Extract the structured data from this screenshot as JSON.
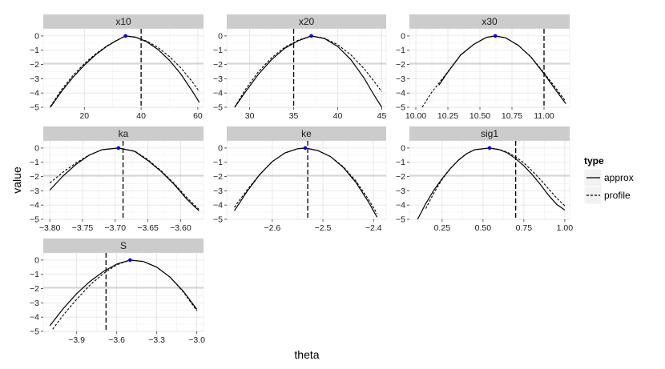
{
  "chart_data": {
    "type": "line",
    "xlabel": "theta",
    "ylabel": "value",
    "legend": {
      "title": "type",
      "position": "right",
      "entries": [
        {
          "name": "approx",
          "linetype": "solid"
        },
        {
          "name": "profile",
          "linetype": "dashed"
        }
      ]
    },
    "grid": true,
    "y_reference_line": -1.92,
    "colors": {
      "strip_bg": "#cccccc",
      "panel_bg": "#ffffff",
      "grid_major": "#e3e3e3",
      "grid_minor": "#f2f2f2",
      "reference_line": "#bdbdbd",
      "peak_point": "#0000ff",
      "line": "#000000"
    },
    "panels": [
      {
        "label": "x10",
        "xlim": [
          5.5,
          62
        ],
        "ylim": [
          -5,
          0.5
        ],
        "xticks": [
          20,
          40,
          60
        ],
        "yticks": [
          0,
          -1,
          -2,
          -3,
          -4,
          -5
        ],
        "xtick_labels": [
          "20",
          "40",
          "60"
        ],
        "ytick_labels": [
          "0",
          "−1",
          "−2",
          "−3",
          "−4",
          "−5"
        ],
        "estimate": 34.5,
        "vline": 40,
        "approx": {
          "x": [
            8.0,
            12.0,
            16.0,
            20.0,
            24.0,
            28.0,
            31.0,
            34.5,
            38.0,
            42.0,
            46.0,
            50.0,
            54.0,
            58.0,
            60.5
          ],
          "y": [
            -5.0,
            -3.88,
            -2.89,
            -2.04,
            -1.31,
            -0.72,
            -0.36,
            0.0,
            -0.09,
            -0.41,
            -0.96,
            -1.71,
            -2.67,
            -3.85,
            -4.65
          ]
        },
        "profile": {
          "x": [
            8.0,
            12.0,
            16.0,
            20.0,
            24.0,
            28.0,
            31.0,
            34.5,
            38.0,
            42.0,
            46.0,
            50.0,
            54.0,
            58.0,
            60.5
          ],
          "y": [
            -4.95,
            -3.75,
            -2.76,
            -1.94,
            -1.25,
            -0.69,
            -0.35,
            0.0,
            -0.08,
            -0.36,
            -0.82,
            -1.45,
            -2.24,
            -3.2,
            -3.9
          ]
        }
      },
      {
        "label": "x20",
        "xlim": [
          27.4,
          45.5
        ],
        "ylim": [
          -5,
          0.5
        ],
        "xticks": [
          30,
          35,
          40,
          45
        ],
        "yticks": [
          0,
          -1,
          -2,
          -3,
          -4,
          -5
        ],
        "xtick_labels": [
          "30",
          "35",
          "40",
          "45"
        ],
        "ytick_labels": [
          "0",
          "−1",
          "−2",
          "−3",
          "−4",
          "−5"
        ],
        "estimate": 37.0,
        "vline": 35.0,
        "approx": {
          "x": [
            28.3,
            29.5,
            31.0,
            32.5,
            34.0,
            35.5,
            37.0,
            38.5,
            40.0,
            41.5,
            43.0,
            44.0,
            45.0
          ],
          "y": [
            -5.0,
            -3.94,
            -2.68,
            -1.65,
            -0.86,
            -0.34,
            0.0,
            -0.18,
            -0.74,
            -1.67,
            -2.96,
            -4.02,
            -5.0
          ]
        },
        "profile": {
          "x": [
            28.3,
            29.5,
            31.0,
            32.5,
            34.0,
            35.5,
            37.0,
            38.5,
            40.0,
            41.5,
            43.0,
            44.0,
            45.0
          ],
          "y": [
            -5.0,
            -3.77,
            -2.5,
            -1.52,
            -0.78,
            -0.3,
            0.0,
            -0.16,
            -0.61,
            -1.33,
            -2.3,
            -3.08,
            -3.9
          ]
        }
      },
      {
        "label": "x30",
        "xlim": [
          9.95,
          11.2
        ],
        "ylim": [
          -5,
          0.5
        ],
        "xticks": [
          10.0,
          10.25,
          10.5,
          10.75,
          11.0
        ],
        "yticks": [
          0,
          -1,
          -2,
          -3,
          -4,
          -5
        ],
        "xtick_labels": [
          "10.00",
          "10.25",
          "10.50",
          "10.75",
          "11.00"
        ],
        "ytick_labels": [
          "0",
          "−1",
          "−2",
          "−3",
          "−4",
          "−5"
        ],
        "estimate": 10.62,
        "vline": 11.0,
        "approx": {
          "x": [
            10.18,
            10.25,
            10.35,
            10.45,
            10.55,
            10.62,
            10.7,
            10.8,
            10.9,
            11.0,
            11.1,
            11.17
          ],
          "y": [
            -3.45,
            -2.53,
            -1.33,
            -0.6,
            -0.1,
            0.0,
            -0.13,
            -0.66,
            -1.5,
            -2.65,
            -3.9,
            -4.75
          ]
        },
        "profile": {
          "x": [
            10.05,
            10.12,
            10.25,
            10.35,
            10.45,
            10.55,
            10.62,
            10.7,
            10.8,
            10.9,
            11.0,
            11.1,
            11.17
          ],
          "y": [
            -5.0,
            -4.0,
            -2.5,
            -1.33,
            -0.6,
            -0.1,
            0.0,
            -0.13,
            -0.66,
            -1.49,
            -2.58,
            -3.75,
            -4.6
          ]
        }
      },
      {
        "label": "ka",
        "xlim": [
          -3.81,
          -3.565
        ],
        "ylim": [
          -5,
          0.5
        ],
        "xticks": [
          -3.8,
          -3.75,
          -3.7,
          -3.65,
          -3.6
        ],
        "yticks": [
          0,
          -1,
          -2,
          -3,
          -4,
          -5
        ],
        "xtick_labels": [
          "−3.80",
          "−3.75",
          "−3.70",
          "−3.65",
          "−3.60"
        ],
        "ytick_labels": [
          "0",
          "−1",
          "−2",
          "−3",
          "−4",
          "−5"
        ],
        "estimate": -3.695,
        "vline": -3.688,
        "approx": {
          "x": [
            -3.8,
            -3.78,
            -3.76,
            -3.74,
            -3.72,
            -3.695,
            -3.67,
            -3.65,
            -3.63,
            -3.61,
            -3.59,
            -3.572
          ],
          "y": [
            -2.95,
            -1.97,
            -1.15,
            -0.51,
            -0.12,
            0.0,
            -0.24,
            -0.88,
            -1.64,
            -2.55,
            -3.61,
            -4.4
          ]
        },
        "profile": {
          "x": [
            -3.8,
            -3.78,
            -3.76,
            -3.74,
            -3.72,
            -3.695,
            -3.67,
            -3.65,
            -3.63,
            -3.61,
            -3.59,
            -3.572
          ],
          "y": [
            -2.45,
            -1.7,
            -1.05,
            -0.5,
            -0.12,
            0.0,
            -0.22,
            -0.82,
            -1.58,
            -2.48,
            -3.5,
            -4.3
          ]
        }
      },
      {
        "label": "ke",
        "xlim": [
          -2.69,
          -2.375
        ],
        "ylim": [
          -5,
          0.5
        ],
        "xticks": [
          -2.6,
          -2.5,
          -2.4
        ],
        "yticks": [
          0,
          -1,
          -2,
          -3,
          -4,
          -5
        ],
        "xtick_labels": [
          "−2.6",
          "−2.5",
          "−2.4"
        ],
        "ytick_labels": [
          "0",
          "−1",
          "−2",
          "−3",
          "−4",
          "−5"
        ],
        "estimate": -2.535,
        "vline": -2.53,
        "approx": {
          "x": [
            -2.675,
            -2.65,
            -2.625,
            -2.6,
            -2.575,
            -2.55,
            -2.535,
            -2.51,
            -2.485,
            -2.46,
            -2.435,
            -2.41,
            -2.393
          ],
          "y": [
            -4.4,
            -3.05,
            -1.87,
            -0.95,
            -0.34,
            -0.05,
            0.0,
            -0.18,
            -0.6,
            -1.35,
            -2.4,
            -3.78,
            -4.85
          ]
        },
        "profile": {
          "x": [
            -2.675,
            -2.65,
            -2.625,
            -2.6,
            -2.575,
            -2.55,
            -2.535,
            -2.51,
            -2.485,
            -2.46,
            -2.435,
            -2.41,
            -2.393
          ],
          "y": [
            -4.15,
            -2.95,
            -1.85,
            -0.95,
            -0.34,
            -0.05,
            0.0,
            -0.18,
            -0.6,
            -1.3,
            -2.3,
            -3.6,
            -4.6
          ]
        }
      },
      {
        "label": "sig1",
        "xlim": [
          0.05,
          1.03
        ],
        "ylim": [
          -5,
          0.5
        ],
        "xticks": [
          0.25,
          0.5,
          0.75,
          1.0
        ],
        "yticks": [
          0,
          -1,
          -2,
          -3,
          -4,
          -5
        ],
        "xtick_labels": [
          "0.25",
          "0.50",
          "0.75",
          "1.00"
        ],
        "ytick_labels": [
          "0",
          "−1",
          "−2",
          "−3",
          "−4",
          "−5"
        ],
        "estimate": 0.54,
        "vline": 0.7,
        "approx": {
          "x": [
            0.1,
            0.15,
            0.2,
            0.25,
            0.3,
            0.35,
            0.4,
            0.45,
            0.54,
            0.6,
            0.65,
            0.7,
            0.75,
            0.8,
            0.85,
            0.9,
            0.95,
            1.0
          ],
          "y": [
            -5.0,
            -3.9,
            -2.95,
            -2.15,
            -1.45,
            -0.85,
            -0.4,
            -0.12,
            0.0,
            -0.12,
            -0.35,
            -0.75,
            -1.25,
            -1.85,
            -2.55,
            -3.3,
            -3.95,
            -4.35
          ]
        },
        "profile": {
          "x": [
            0.15,
            0.2,
            0.25,
            0.3,
            0.35,
            0.4,
            0.45,
            0.54,
            0.6,
            0.65,
            0.7,
            0.75,
            0.8,
            0.85,
            0.9,
            0.95,
            1.0
          ],
          "y": [
            -4.25,
            -3.15,
            -2.2,
            -1.45,
            -0.85,
            -0.4,
            -0.12,
            0.0,
            -0.1,
            -0.3,
            -0.62,
            -1.05,
            -1.6,
            -2.2,
            -2.85,
            -3.5,
            -4.05
          ]
        }
      },
      {
        "label": "S",
        "xlim": [
          -4.15,
          -2.95
        ],
        "ylim": [
          -5,
          0.5
        ],
        "xticks": [
          -3.9,
          -3.6,
          -3.3,
          -3.0
        ],
        "yticks": [
          0,
          -1,
          -2,
          -3,
          -4,
          -5
        ],
        "xtick_labels": [
          "−3.9",
          "−3.6",
          "−3.3",
          "−3.0"
        ],
        "ytick_labels": [
          "0",
          "−1",
          "−2",
          "−3",
          "−4",
          "−5"
        ],
        "estimate": -3.5,
        "vline": -3.68,
        "approx": {
          "x": [
            -4.1,
            -4.0,
            -3.9,
            -3.8,
            -3.7,
            -3.6,
            -3.5,
            -3.4,
            -3.3,
            -3.2,
            -3.1,
            -3.0
          ],
          "y": [
            -4.6,
            -3.4,
            -2.35,
            -1.5,
            -0.8,
            -0.28,
            0.0,
            -0.1,
            -0.5,
            -1.2,
            -2.2,
            -3.45
          ]
        },
        "profile": {
          "x": [
            -4.08,
            -4.0,
            -3.9,
            -3.8,
            -3.7,
            -3.6,
            -3.5,
            -3.4,
            -3.3,
            -3.2,
            -3.1,
            -3.0
          ],
          "y": [
            -4.85,
            -3.85,
            -2.75,
            -1.75,
            -0.95,
            -0.33,
            0.0,
            -0.1,
            -0.5,
            -1.2,
            -2.25,
            -3.55
          ]
        }
      }
    ]
  }
}
